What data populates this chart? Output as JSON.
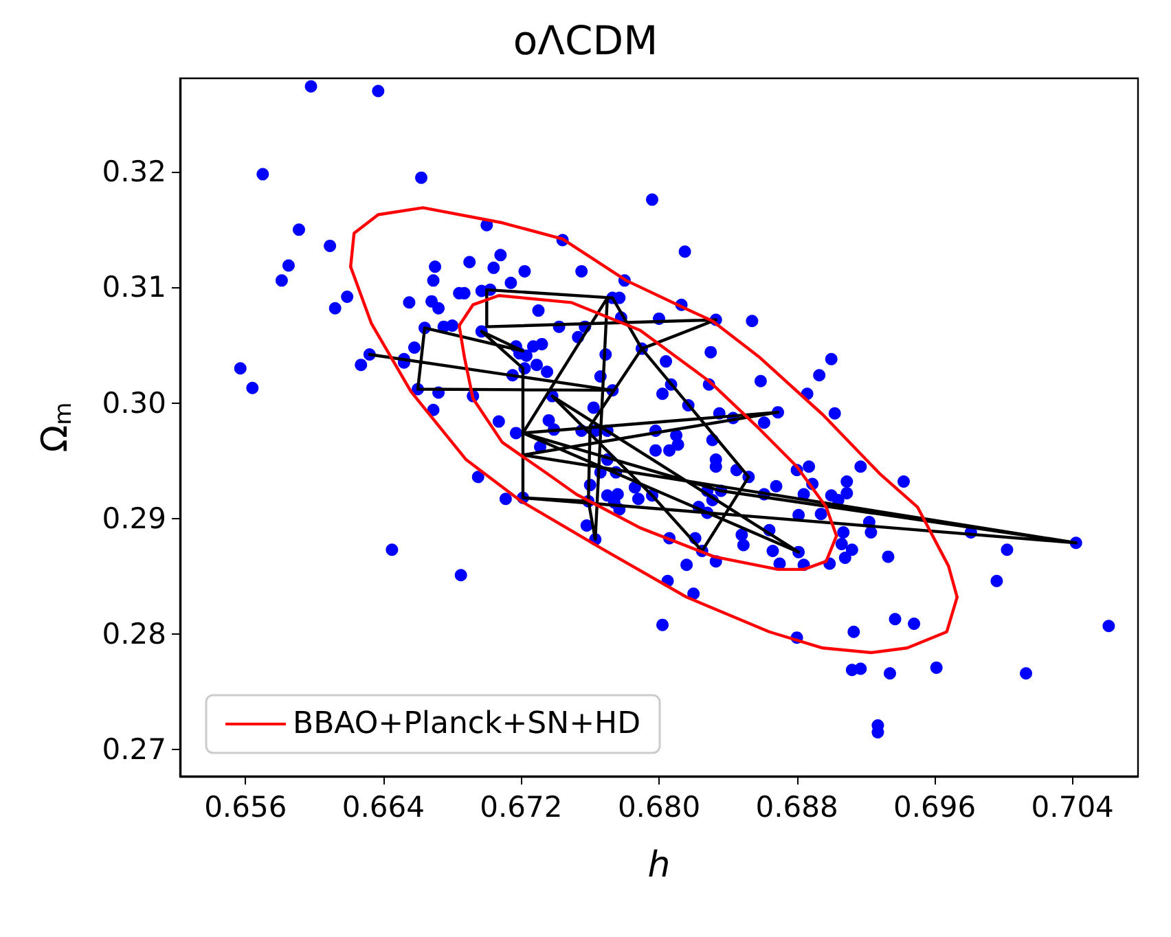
{
  "chart_data": {
    "type": "scatter",
    "title": "oΛCDM",
    "xlabel": "h",
    "ylabel": "Ω$_{m}$",
    "xlim": [
      0.6522,
      0.7078
    ],
    "ylim": [
      0.2677,
      0.3281
    ],
    "xticks": [
      {
        "value": 0.656,
        "label": "0.656"
      },
      {
        "value": 0.664,
        "label": "0.664"
      },
      {
        "value": 0.672,
        "label": "0.672"
      },
      {
        "value": 0.68,
        "label": "0.680"
      },
      {
        "value": 0.688,
        "label": "0.688"
      },
      {
        "value": 0.696,
        "label": "0.696"
      },
      {
        "value": 0.704,
        "label": "0.704"
      }
    ],
    "yticks": [
      0.27,
      0.28,
      0.29,
      {
        "value": 0.3,
        "label": "0.30"
      },
      0.31,
      0.32
    ],
    "grid": false,
    "legend": "bottom left",
    "series": [
      {
        "color": "#0000ff",
        "marker": "circle",
        "x": [
          0.6598,
          0.6637,
          0.657,
          0.6662,
          0.6591,
          0.6609,
          0.67,
          0.6585,
          0.6581,
          0.6619,
          0.6612,
          0.667,
          0.6669,
          0.669,
          0.6704,
          0.6708,
          0.6684,
          0.6687,
          0.6697,
          0.6702,
          0.6655,
          0.6668,
          0.6672,
          0.6664,
          0.6675,
          0.668,
          0.6697,
          0.6658,
          0.6632,
          0.6627,
          0.6652,
          0.6652,
          0.6557,
          0.6564,
          0.666,
          0.6672,
          0.6692,
          0.6669,
          0.6707,
          0.6796,
          0.6744,
          0.6815,
          0.6722,
          0.6714,
          0.6755,
          0.678,
          0.6773,
          0.6777,
          0.673,
          0.6813,
          0.6778,
          0.68,
          0.6833,
          0.6854,
          0.6742,
          0.6757,
          0.6753,
          0.6717,
          0.6727,
          0.6732,
          0.6719,
          0.6723,
          0.6769,
          0.679,
          0.683,
          0.6804,
          0.6722,
          0.6729,
          0.6735,
          0.6715,
          0.6766,
          0.6829,
          0.6807,
          0.6859,
          0.6893,
          0.6773,
          0.6738,
          0.6802,
          0.6886,
          0.6817,
          0.6762,
          0.6835,
          0.6843,
          0.6869,
          0.6861,
          0.6736,
          0.69,
          0.6902,
          0.6695,
          0.6645,
          0.6685,
          0.6717,
          0.6739,
          0.6755,
          0.6763,
          0.677,
          0.6798,
          0.681,
          0.6831,
          0.6731,
          0.6798,
          0.6806,
          0.6811,
          0.6833,
          0.6833,
          0.677,
          0.6845,
          0.6852,
          0.688,
          0.6887,
          0.6889,
          0.6766,
          0.6775,
          0.676,
          0.6786,
          0.6868,
          0.6828,
          0.6836,
          0.6861,
          0.6884,
          0.6711,
          0.6721,
          0.6759,
          0.677,
          0.6776,
          0.6774,
          0.6777,
          0.6788,
          0.6796,
          0.6823,
          0.6828,
          0.6831,
          0.6881,
          0.6894,
          0.6758,
          0.6763,
          0.6848,
          0.6864,
          0.6806,
          0.6821,
          0.6849,
          0.6825,
          0.6866,
          0.6881,
          0.6833,
          0.6816,
          0.687,
          0.6884,
          0.6805,
          0.682,
          0.6802,
          0.688,
          0.6917,
          0.6909,
          0.6942,
          0.69,
          0.6904,
          0.6909,
          0.6922,
          0.6923,
          0.6907,
          0.6906,
          0.6912,
          0.6908,
          0.6933,
          0.6899,
          0.6981,
          0.7002,
          0.7042,
          0.6996,
          0.6937,
          0.6948,
          0.6913,
          0.7061,
          0.6912,
          0.6917,
          0.6934,
          0.6961,
          0.7013,
          0.6927,
          0.6927
        ],
        "values": [
          0.3274,
          0.327,
          0.3198,
          0.3195,
          0.315,
          0.3136,
          0.3154,
          0.3119,
          0.3106,
          0.3092,
          0.3082,
          0.3118,
          0.3106,
          0.3122,
          0.3117,
          0.3128,
          0.3095,
          0.3095,
          0.3097,
          0.3098,
          0.3087,
          0.3088,
          0.3082,
          0.3065,
          0.3066,
          0.3067,
          0.3062,
          0.3048,
          0.3042,
          0.3033,
          0.3038,
          0.3035,
          0.303,
          0.3013,
          0.3012,
          0.3009,
          0.3006,
          0.2994,
          0.2984,
          0.3176,
          0.3141,
          0.3131,
          0.3114,
          0.3104,
          0.3114,
          0.3106,
          0.3091,
          0.3091,
          0.308,
          0.3085,
          0.3074,
          0.3073,
          0.3072,
          0.3071,
          0.3066,
          0.3066,
          0.3057,
          0.3049,
          0.3049,
          0.3051,
          0.3043,
          0.3041,
          0.3042,
          0.3047,
          0.3044,
          0.3036,
          0.303,
          0.3033,
          0.3027,
          0.3024,
          0.3023,
          0.3016,
          0.3016,
          0.3019,
          0.3024,
          0.3011,
          0.3006,
          0.3008,
          0.3008,
          0.2998,
          0.2996,
          0.2991,
          0.2987,
          0.2992,
          0.2983,
          0.2985,
          0.3038,
          0.2991,
          0.2936,
          0.2873,
          0.2851,
          0.2974,
          0.2977,
          0.2976,
          0.2976,
          0.2976,
          0.2976,
          0.2972,
          0.2968,
          0.2962,
          0.2959,
          0.2959,
          0.2964,
          0.2951,
          0.2945,
          0.2951,
          0.2942,
          0.2936,
          0.2942,
          0.2945,
          0.293,
          0.294,
          0.294,
          0.2929,
          0.2927,
          0.2928,
          0.2924,
          0.2924,
          0.2921,
          0.2921,
          0.2917,
          0.2918,
          0.2915,
          0.292,
          0.2921,
          0.2914,
          0.2908,
          0.2917,
          0.292,
          0.291,
          0.2905,
          0.2916,
          0.2903,
          0.2904,
          0.2894,
          0.2882,
          0.2886,
          0.289,
          0.2883,
          0.2883,
          0.2877,
          0.2872,
          0.2872,
          0.2871,
          0.2863,
          0.286,
          0.2861,
          0.286,
          0.2846,
          0.2835,
          0.2808,
          0.2797,
          0.2945,
          0.2932,
          0.2932,
          0.292,
          0.2916,
          0.2922,
          0.2897,
          0.2888,
          0.2888,
          0.2878,
          0.2873,
          0.2866,
          0.2867,
          0.2861,
          0.2888,
          0.2873,
          0.2879,
          0.2846,
          0.2813,
          0.2809,
          0.2802,
          0.2807,
          0.2769,
          0.277,
          0.2766,
          0.2771,
          0.2766,
          0.2721,
          0.2715
        ]
      },
      {
        "type": "line",
        "color": "#000000",
        "marker": "none",
        "x": [
          0.6632,
          0.6773,
          0.666,
          0.6664,
          0.6721,
          0.6697,
          0.6721,
          0.6721,
          0.7042,
          0.6721,
          0.6869,
          0.6721,
          0.677,
          0.6763,
          0.6759,
          0.676,
          0.679,
          0.6833,
          0.67,
          0.67,
          0.6773,
          0.679,
          0.6852,
          0.6825,
          0.6796,
          0.6738,
          0.6881,
          0.6721,
          0.6836,
          0.7042,
          0.6721,
          0.6759
        ],
        "values": [
          0.3042,
          0.3011,
          0.3012,
          0.3065,
          0.3045,
          0.3062,
          0.303,
          0.2918,
          0.2879,
          0.2955,
          0.2992,
          0.2974,
          0.3091,
          0.2882,
          0.2915,
          0.298,
          0.3047,
          0.3072,
          0.3066,
          0.3098,
          0.3091,
          0.3047,
          0.2936,
          0.2872,
          0.292,
          0.3006,
          0.2871,
          0.2974,
          0.2924,
          0.2879,
          0.2918,
          0.2915
        ]
      },
      {
        "type": "line",
        "name": "BBAO+Planck+SN+HD",
        "color": "#ff0000",
        "marker": "none",
        "x": [
          0.6621,
          0.6623,
          0.6637,
          0.6663,
          0.6709,
          0.6744,
          0.6781,
          0.6815,
          0.6831,
          0.6858,
          0.6895,
          0.6928,
          0.695,
          0.6968,
          0.6973
        ],
        "values": [
          0.3118,
          0.3147,
          0.3163,
          0.3169,
          0.3156,
          0.3142,
          0.3106,
          0.3082,
          0.3071,
          0.304,
          0.299,
          0.2939,
          0.291,
          0.2859,
          0.2832
        ]
      },
      {
        "type": "line",
        "color": "#ff0000",
        "marker": "none",
        "x": [
          0.6621,
          0.6633,
          0.6656,
          0.6688,
          0.672,
          0.6768,
          0.6816,
          0.6864,
          0.6895,
          0.6923,
          0.6944,
          0.6967,
          0.6973
        ],
        "values": [
          0.3118,
          0.3069,
          0.301,
          0.2951,
          0.2915,
          0.2873,
          0.2832,
          0.2802,
          0.2788,
          0.2784,
          0.2788,
          0.2802,
          0.2832
        ]
      },
      {
        "type": "line",
        "color": "#ff0000",
        "marker": "none",
        "x": [
          0.6684,
          0.6692,
          0.6707,
          0.6749,
          0.6789,
          0.6829,
          0.6858,
          0.688,
          0.6897,
          0.6903
        ],
        "values": [
          0.3067,
          0.3085,
          0.3093,
          0.3087,
          0.3063,
          0.3019,
          0.2978,
          0.2945,
          0.291,
          0.2885
        ]
      },
      {
        "type": "line",
        "color": "#ff0000",
        "marker": "none",
        "x": [
          0.6684,
          0.6687,
          0.6692,
          0.6709,
          0.6735,
          0.6752,
          0.6789,
          0.6832,
          0.6869,
          0.6884,
          0.6897,
          0.6903
        ],
        "values": [
          0.3067,
          0.304,
          0.3004,
          0.2966,
          0.2939,
          0.2921,
          0.2892,
          0.2867,
          0.2856,
          0.2856,
          0.2863,
          0.2885
        ]
      }
    ]
  }
}
